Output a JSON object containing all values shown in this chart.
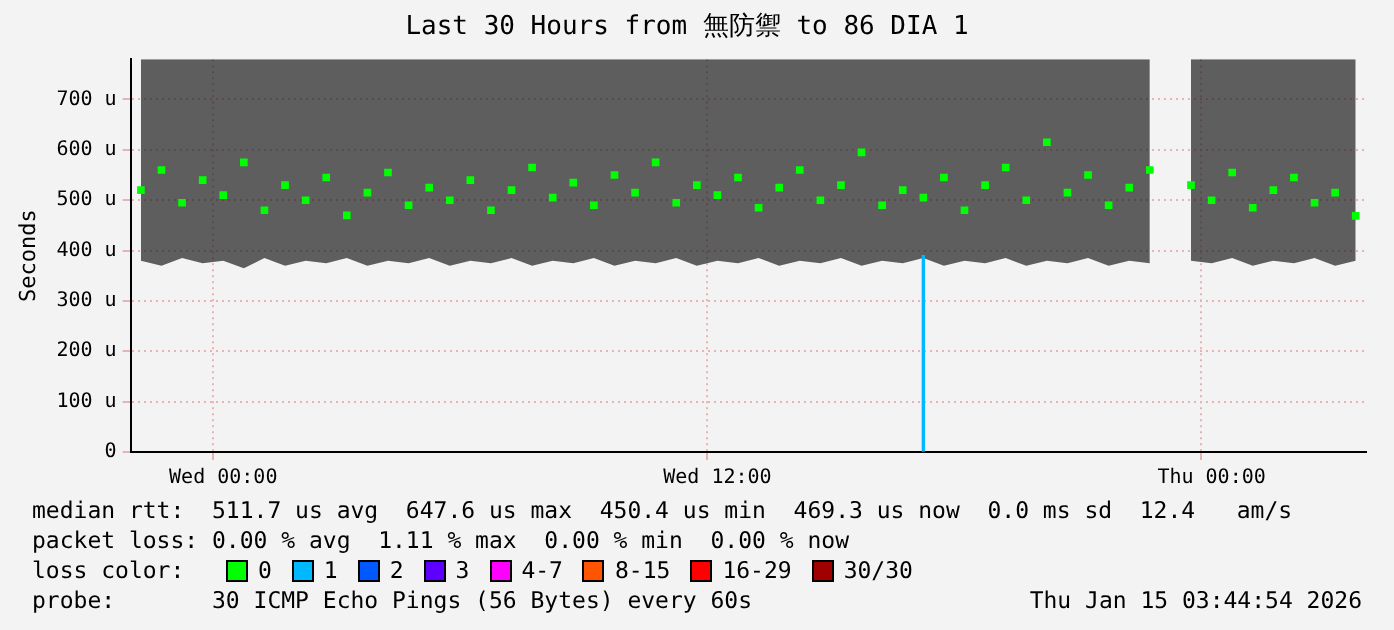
{
  "chart_data": {
    "type": "scatter",
    "title": "Last 30 Hours from 無防禦 to 86 DIA 1",
    "ylabel": "Seconds",
    "categories": [
      null,
      null,
      null,
      null,
      "Wed 00:00",
      null,
      null,
      null,
      null,
      null,
      null,
      null,
      null,
      null,
      null,
      null,
      null,
      null,
      null,
      null,
      null,
      null,
      null,
      null,
      null,
      null,
      null,
      null,
      "Wed 12:00",
      null,
      null,
      null,
      null,
      null,
      null,
      null,
      null,
      null,
      null,
      null,
      null,
      null,
      null,
      null,
      null,
      null,
      null,
      null,
      null,
      null,
      null,
      null,
      "Thu 00:00",
      null,
      null,
      null,
      null,
      null,
      null,
      null
    ],
    "series": [
      {
        "name": "0",
        "color": "#00ff00",
        "values": [
          520,
          560,
          495,
          540,
          510,
          575,
          480,
          530,
          500,
          545,
          470,
          515,
          555,
          490,
          525,
          500,
          540,
          480,
          520,
          565,
          505,
          535,
          490,
          550,
          515,
          575,
          495,
          530,
          510,
          545,
          485,
          525,
          560,
          500,
          530,
          595,
          490,
          520,
          505,
          545,
          480,
          530,
          565,
          500,
          615,
          515,
          550,
          490,
          525,
          560,
          null,
          530,
          500,
          555,
          485,
          520,
          545,
          495,
          515,
          469
        ],
        "lower": [
          380,
          370,
          385,
          375,
          380,
          365,
          385,
          370,
          380,
          375,
          385,
          370,
          380,
          375,
          385,
          370,
          380,
          375,
          385,
          370,
          380,
          375,
          385,
          370,
          380,
          375,
          385,
          370,
          380,
          375,
          385,
          370,
          380,
          375,
          385,
          370,
          380,
          375,
          385,
          370,
          380,
          375,
          385,
          370,
          380,
          375,
          385,
          370,
          380,
          375,
          null,
          380,
          375,
          385,
          370,
          380,
          375,
          385,
          370,
          380
        ],
        "upper": [
          780,
          780,
          780,
          780,
          780,
          780,
          780,
          780,
          780,
          780,
          780,
          780,
          780,
          780,
          780,
          780,
          780,
          780,
          780,
          780,
          780,
          780,
          780,
          780,
          780,
          780,
          780,
          780,
          780,
          780,
          780,
          780,
          780,
          780,
          780,
          780,
          780,
          780,
          780,
          780,
          780,
          780,
          780,
          780,
          780,
          780,
          780,
          780,
          780,
          780,
          null,
          780,
          780,
          780,
          780,
          780,
          780,
          780,
          780,
          780
        ]
      },
      {
        "name": "1",
        "color": "#00b8ff",
        "type": "bar",
        "values": [
          null,
          null,
          null,
          null,
          null,
          null,
          null,
          null,
          null,
          null,
          null,
          null,
          null,
          null,
          null,
          null,
          null,
          null,
          null,
          null,
          null,
          null,
          null,
          null,
          null,
          null,
          null,
          null,
          null,
          null,
          null,
          null,
          null,
          null,
          null,
          null,
          null,
          null,
          390,
          null,
          null,
          null,
          null,
          null,
          null,
          null,
          null,
          null,
          null,
          null,
          null,
          null,
          null,
          null,
          null,
          null,
          null,
          null,
          null,
          null
        ]
      },
      {
        "name": "2",
        "color": "#0059ff",
        "values": [
          null,
          null,
          null,
          null,
          null,
          null,
          null,
          null,
          null,
          null,
          null,
          null,
          null,
          null,
          null,
          null,
          null,
          null,
          null,
          null,
          null,
          null,
          null,
          null,
          null,
          null,
          null,
          null,
          null,
          null,
          null,
          null,
          null,
          null,
          null,
          null,
          null,
          null,
          null,
          null,
          null,
          null,
          null,
          null,
          null,
          null,
          null,
          null,
          null,
          null,
          null,
          null,
          null,
          null,
          null,
          null,
          null,
          null,
          null,
          null
        ]
      },
      {
        "name": "3",
        "color": "#5e00ff",
        "values": [
          null,
          null,
          null,
          null,
          null,
          null,
          null,
          null,
          null,
          null,
          null,
          null,
          null,
          null,
          null,
          null,
          null,
          null,
          null,
          null,
          null,
          null,
          null,
          null,
          null,
          null,
          null,
          null,
          null,
          null,
          null,
          null,
          null,
          null,
          null,
          null,
          null,
          null,
          null,
          null,
          null,
          null,
          null,
          null,
          null,
          null,
          null,
          null,
          null,
          null,
          null,
          null,
          null,
          null,
          null,
          null,
          null,
          null,
          null,
          null
        ]
      },
      {
        "name": "4-7",
        "color": "#ff00ff",
        "values": [
          null,
          null,
          null,
          null,
          null,
          null,
          null,
          null,
          null,
          null,
          null,
          null,
          null,
          null,
          null,
          null,
          null,
          null,
          null,
          null,
          null,
          null,
          null,
          null,
          null,
          null,
          null,
          null,
          null,
          null,
          null,
          null,
          null,
          null,
          null,
          null,
          null,
          null,
          null,
          null,
          null,
          null,
          null,
          null,
          null,
          null,
          null,
          null,
          null,
          null,
          null,
          null,
          null,
          null,
          null,
          null,
          null,
          null,
          null,
          null
        ]
      },
      {
        "name": "8-15",
        "color": "#ff5500",
        "values": [
          null,
          null,
          null,
          null,
          null,
          null,
          null,
          null,
          null,
          null,
          null,
          null,
          null,
          null,
          null,
          null,
          null,
          null,
          null,
          null,
          null,
          null,
          null,
          null,
          null,
          null,
          null,
          null,
          null,
          null,
          null,
          null,
          null,
          null,
          null,
          null,
          null,
          null,
          null,
          null,
          null,
          null,
          null,
          null,
          null,
          null,
          null,
          null,
          null,
          null,
          null,
          null,
          null,
          null,
          null,
          null,
          null,
          null,
          null,
          null
        ]
      },
      {
        "name": "16-29",
        "color": "#ff0000",
        "values": [
          null,
          null,
          null,
          null,
          null,
          null,
          null,
          null,
          null,
          null,
          null,
          null,
          null,
          null,
          null,
          null,
          null,
          null,
          null,
          null,
          null,
          null,
          null,
          null,
          null,
          null,
          null,
          null,
          null,
          null,
          null,
          null,
          null,
          null,
          null,
          null,
          null,
          null,
          null,
          null,
          null,
          null,
          null,
          null,
          null,
          null,
          null,
          null,
          null,
          null,
          null,
          null,
          null,
          null,
          null,
          null,
          null,
          null,
          null,
          null
        ]
      },
      {
        "name": "30/30",
        "color": "#a10000",
        "values": [
          null,
          null,
          null,
          null,
          null,
          null,
          null,
          null,
          null,
          null,
          null,
          null,
          null,
          null,
          null,
          null,
          null,
          null,
          null,
          null,
          null,
          null,
          null,
          null,
          null,
          null,
          null,
          null,
          null,
          null,
          null,
          null,
          null,
          null,
          null,
          null,
          null,
          null,
          null,
          null,
          null,
          null,
          null,
          null,
          null,
          null,
          null,
          null,
          null,
          null,
          null,
          null,
          null,
          null,
          null,
          null,
          null,
          null,
          null,
          null
        ]
      }
    ],
    "legend_title": "loss color:",
    "legend": "bottom",
    "marker": "square",
    "grid": true,
    "ylim": [
      0,
      780
    ],
    "yticks": [
      0,
      {
        "value": 100,
        "label": "100 u"
      },
      {
        "value": 200,
        "label": "200 u"
      },
      {
        "value": 300,
        "label": "300 u"
      },
      {
        "value": 400,
        "label": "400 u"
      },
      {
        "value": 500,
        "label": "500 u"
      },
      {
        "value": 600,
        "label": "600 u"
      },
      {
        "value": 700,
        "label": "700 u"
      }
    ],
    "annotations": [
      "median rtt:  511.7 us avg  647.6 us max  450.4 us min  469.3 us now  0.0 ms sd  12.4   am/s",
      "packet loss: 0.00 % avg  1.11 % max  0.00 % min  0.00 % now",
      "probe:       30 ICMP Echo Pings (56 Bytes) every 60s",
      "Thu Jan 15 03:44:54 2026"
    ]
  }
}
